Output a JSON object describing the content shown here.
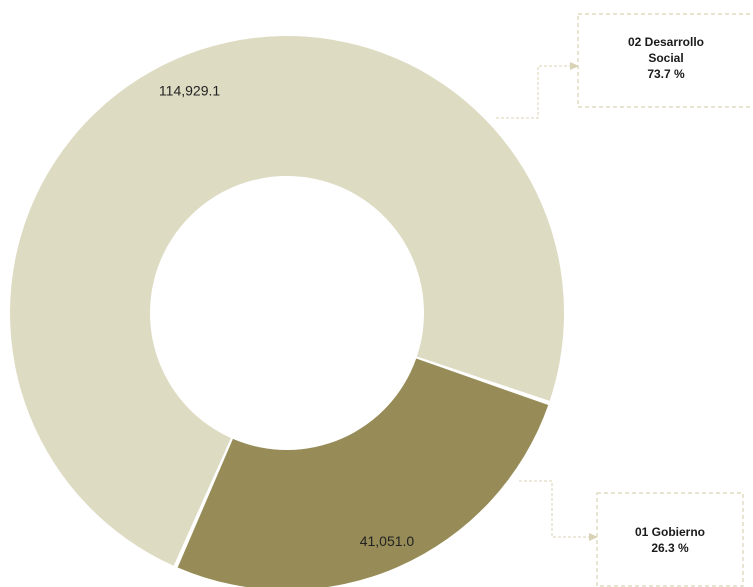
{
  "chart_data": {
    "type": "pie",
    "variant": "donut",
    "title": "",
    "series": [
      {
        "name": "02 Desarrollo Social",
        "category": [
          "02 Desarrollo",
          "Social"
        ],
        "value": 114929.1,
        "value_label": "114,929.1",
        "percent_label": "73.7 %",
        "color": "#dedbc3"
      },
      {
        "name": "01 Gobierno",
        "category": [
          "01 Gobierno"
        ],
        "value": 41051.0,
        "value_label": "41,051.0",
        "percent_label": "26.3 %",
        "color": "#978c57"
      }
    ],
    "legend": "callouts",
    "grid": false
  }
}
